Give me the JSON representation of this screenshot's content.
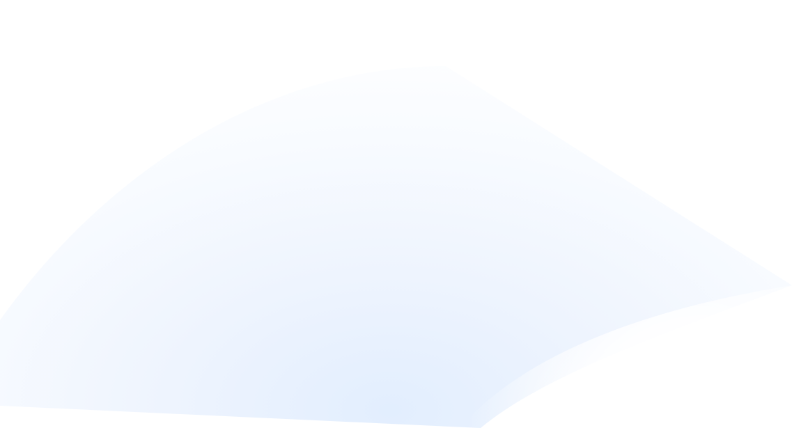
{
  "background": {
    "base_color": "#ffffff",
    "gradient_colors": [
      "#e2eefe",
      "#eef4fe",
      "#f8fbff",
      "#ffffff"
    ]
  }
}
